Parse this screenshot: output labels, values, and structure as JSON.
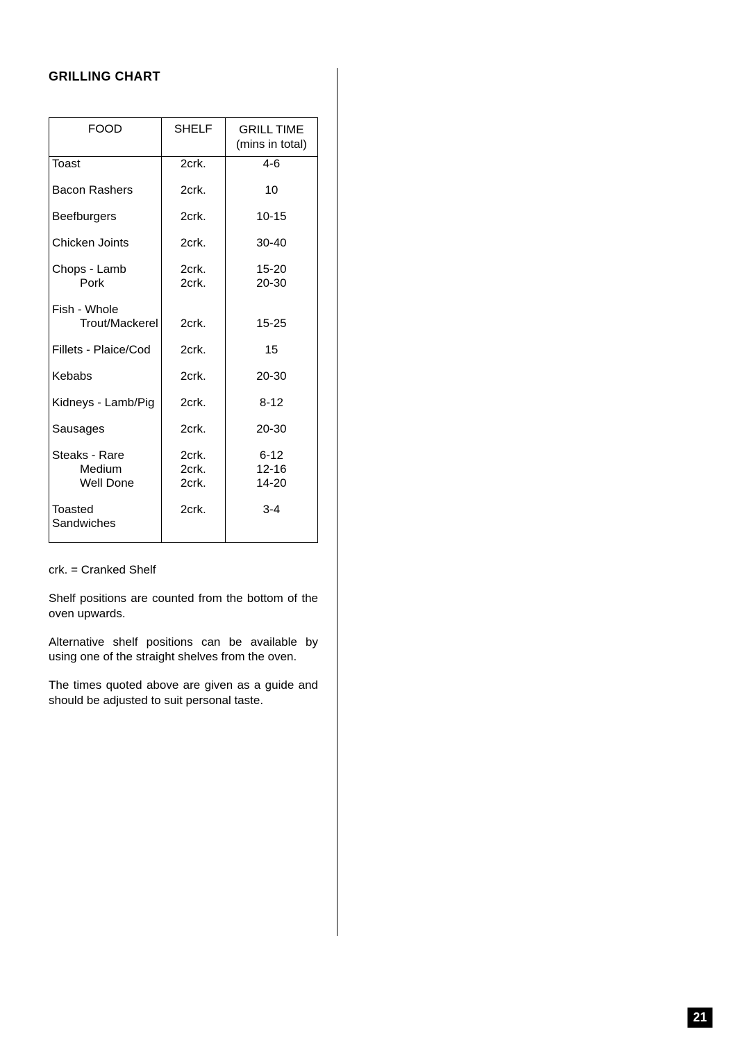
{
  "title": "GRILLING CHART",
  "table": {
    "columns": [
      "FOOD",
      "SHELF",
      "GRILL TIME\n(mins in total)"
    ],
    "col_widths_pct": [
      41,
      24,
      35
    ],
    "border_color": "#000000",
    "font_size_pt": 13,
    "rows": [
      {
        "food": "Toast",
        "shelf": "2crk.",
        "time": "4-6"
      },
      {
        "food": "Bacon  Rashers",
        "shelf": "2crk.",
        "time": "10"
      },
      {
        "food": "Beefburgers",
        "shelf": "2crk.",
        "time": "10-15"
      },
      {
        "food": "Chicken Joints",
        "shelf": "2crk.",
        "time": "30-40"
      },
      {
        "food": "Chops - Lamb",
        "shelf": "2crk.",
        "time": "15-20",
        "sub": [
          {
            "food": "Pork",
            "shelf": "2crk.",
            "time": "20-30"
          }
        ]
      },
      {
        "food": "Fish - Whole",
        "shelf": "",
        "time": "",
        "sub": [
          {
            "food": "Trout/Mackerel",
            "shelf": "2crk.",
            "time": "15-25"
          }
        ]
      },
      {
        "food": "Fillets - Plaice/Cod",
        "shelf": "2crk.",
        "time": "15"
      },
      {
        "food": "Kebabs",
        "shelf": "2crk.",
        "time": "20-30"
      },
      {
        "food": "Kidneys - Lamb/Pig",
        "shelf": "2crk.",
        "time": "8-12"
      },
      {
        "food": "Sausages",
        "shelf": "2crk.",
        "time": "20-30"
      },
      {
        "food": "Steaks - Rare",
        "shelf": "2crk.",
        "time": "6-12",
        "sub": [
          {
            "food": "Medium",
            "shelf": "2crk.",
            "time": "12-16"
          },
          {
            "food": "Well Done",
            "shelf": "2crk.",
            "time": "14-20"
          }
        ]
      },
      {
        "food": "Toasted Sandwiches",
        "shelf": "2crk.",
        "time": "3-4"
      }
    ]
  },
  "notes": {
    "legend": "crk.   =  Cranked Shelf",
    "p1": "Shelf positions are counted from the bottom of the oven upwards.",
    "p2": "Alternative shelf positions can be available by using one of the straight shelves from the oven.",
    "p3": "The times quoted above are given as a guide and should be adjusted to suit personal taste."
  },
  "page_number": "21",
  "colors": {
    "text": "#000000",
    "background": "#ffffff",
    "page_num_bg": "#000000",
    "page_num_fg": "#ffffff"
  }
}
